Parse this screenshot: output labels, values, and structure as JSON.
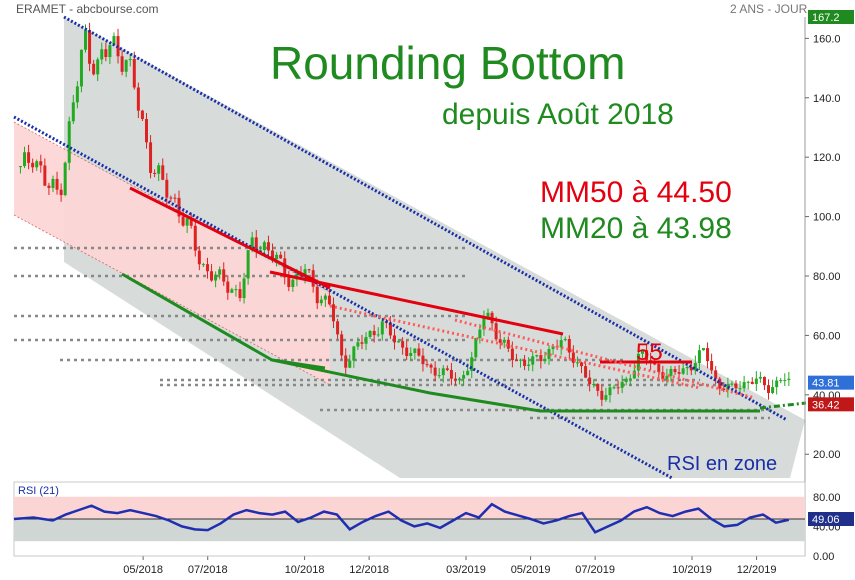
{
  "header": {
    "title": "ERAMET - abcbourse.com",
    "period": "2 ANS - JOUR"
  },
  "annotations": {
    "title": "Rounding Bottom",
    "subtitle": "depuis Août 2018",
    "mm50": "MM50 à 44.50",
    "mm20": "MM20 à 43.98",
    "mark_55": "55",
    "rsi_zone": "RSI en zone"
  },
  "colors": {
    "red": "#e3000f",
    "green": "#1f8a1f",
    "blue_channel": "#1a2ea8",
    "candle_up": "#22aa22",
    "candle_down": "#dd2222",
    "rsi_line": "#1f2fb0",
    "pink_zone": "#fcd6d6",
    "gray_zone": "#d3d8d6"
  },
  "chart_data": [
    {
      "type": "line",
      "title": "",
      "y_ticks": [
        20,
        40,
        60,
        80,
        100,
        120,
        140,
        160
      ],
      "y_tick_labels": [
        "20.00",
        "40.00",
        "60.00",
        "80.00",
        "100.0",
        "120.0",
        "140.0",
        "160.0"
      ],
      "ylim": [
        12,
        167.2
      ],
      "x_tick_labels": [
        "05/2018",
        "07/2018",
        "10/2018",
        "12/2018",
        "03/2019",
        "05/2019",
        "07/2019",
        "10/2019",
        "12/2019"
      ],
      "x_ticks": [
        4,
        6,
        9,
        11,
        14,
        16,
        18,
        21,
        23
      ],
      "xlim": [
        0,
        24.5
      ],
      "price_labels": {
        "max": "167.2",
        "last": "43.81",
        "low": "36.42"
      },
      "series": [
        {
          "values_x": [
            0.2,
            0.6,
            1.0,
            1.4,
            1.8,
            2.2,
            2.6,
            3.0,
            3.4,
            3.8,
            4.2,
            4.6,
            5.0,
            5.4,
            5.8,
            6.2,
            6.6,
            7.0,
            7.4,
            7.8,
            8.2,
            8.6,
            9.0,
            9.4,
            9.8,
            10.2,
            10.6,
            11.0,
            11.4,
            11.8,
            12.2,
            12.6,
            13.0,
            13.4,
            13.8,
            14.2,
            14.6,
            15.0,
            15.4,
            15.8,
            16.2,
            16.6,
            17.0,
            17.4,
            17.8,
            18.2,
            18.6,
            19.0,
            19.4,
            19.8,
            20.2,
            20.6,
            21.0,
            21.4,
            21.8,
            22.2,
            22.6,
            23.0,
            23.4,
            23.8,
            24.0
          ],
          "values_y": [
            115,
            122,
            110,
            108,
            135,
            160,
            150,
            158,
            155,
            140,
            120,
            110,
            105,
            96,
            84,
            80,
            77,
            74,
            92,
            90,
            84,
            78,
            82,
            74,
            70,
            50,
            56,
            60,
            64,
            58,
            55,
            52,
            48,
            47,
            45,
            52,
            70,
            58,
            54,
            50,
            52,
            55,
            58,
            52,
            44,
            40,
            42,
            45,
            54,
            50,
            46,
            48,
            50,
            55,
            43,
            42,
            44,
            45,
            42,
            46,
            43.81
          ]
        }
      ]
    },
    {
      "type": "line",
      "title": "RSI (21)",
      "y_ticks": [
        0,
        40,
        80
      ],
      "y_tick_labels": [
        "0.00",
        "40.00",
        "80.00"
      ],
      "ylim": [
        0,
        100
      ],
      "last_label": "49.06",
      "series": [
        {
          "values_x": [
            0.0,
            0.6,
            1.2,
            1.6,
            2.0,
            2.4,
            2.8,
            3.2,
            3.6,
            4.0,
            4.4,
            4.8,
            5.2,
            5.6,
            6.0,
            6.4,
            6.8,
            7.2,
            7.6,
            8.0,
            8.4,
            8.8,
            9.2,
            9.6,
            10.0,
            10.4,
            10.8,
            11.2,
            11.6,
            12.0,
            12.4,
            12.8,
            13.2,
            13.6,
            14.0,
            14.4,
            14.8,
            15.2,
            15.6,
            16.0,
            16.4,
            16.8,
            17.2,
            17.6,
            18.0,
            18.4,
            18.8,
            19.2,
            19.6,
            20.0,
            20.4,
            20.8,
            21.2,
            21.6,
            22.0,
            22.4,
            22.8,
            23.2,
            23.6,
            24.0
          ],
          "values_y": [
            50,
            52,
            48,
            56,
            62,
            68,
            60,
            58,
            62,
            58,
            54,
            48,
            40,
            36,
            35,
            44,
            56,
            62,
            58,
            56,
            60,
            46,
            52,
            60,
            56,
            36,
            46,
            54,
            60,
            48,
            40,
            44,
            38,
            48,
            58,
            52,
            70,
            60,
            55,
            50,
            44,
            48,
            54,
            58,
            32,
            40,
            48,
            60,
            66,
            58,
            54,
            60,
            64,
            50,
            40,
            42,
            52,
            56,
            45,
            49
          ]
        }
      ]
    }
  ]
}
